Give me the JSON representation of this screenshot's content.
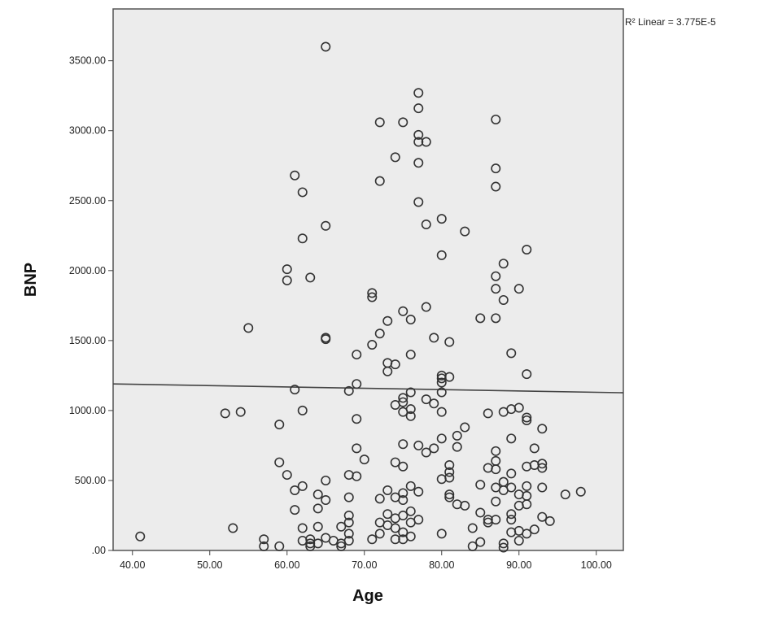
{
  "chart_data": {
    "type": "scatter",
    "xlabel": "Age",
    "ylabel": "BNP",
    "xlim": [
      37.5,
      103.5
    ],
    "ylim": [
      0,
      3870
    ],
    "x_ticks": [
      40,
      50,
      60,
      70,
      80,
      90,
      100
    ],
    "x_tick_labels": [
      "40.00",
      "50.00",
      "60.00",
      "70.00",
      "80.00",
      "90.00",
      "100.00"
    ],
    "y_ticks": [
      0,
      500,
      1000,
      1500,
      2000,
      2500,
      3000,
      3500
    ],
    "y_tick_labels": [
      ".00",
      "500.00",
      "1000.00",
      "1500.00",
      "2000.00",
      "2500.00",
      "3000.00",
      "3500.00"
    ],
    "annotation": "R² Linear = 3.775E-5",
    "grid": false,
    "colors": {
      "plot_background": "#ececec",
      "marker": "#333333",
      "fit_line": "#444444"
    },
    "fit_line": {
      "x": [
        37.5,
        103.5
      ],
      "y": [
        1190,
        1127
      ]
    },
    "points": [
      [
        41,
        100
      ],
      [
        52,
        980
      ],
      [
        53,
        160
      ],
      [
        54,
        990
      ],
      [
        55,
        1590
      ],
      [
        57,
        80
      ],
      [
        57,
        30
      ],
      [
        59,
        30
      ],
      [
        59,
        900
      ],
      [
        59,
        630
      ],
      [
        60,
        540
      ],
      [
        60,
        2010
      ],
      [
        60,
        1930
      ],
      [
        61,
        2680
      ],
      [
        61,
        1150
      ],
      [
        61,
        430
      ],
      [
        61,
        290
      ],
      [
        62,
        2560
      ],
      [
        62,
        2230
      ],
      [
        62,
        1000
      ],
      [
        62,
        460
      ],
      [
        62,
        160
      ],
      [
        62,
        70
      ],
      [
        63,
        1950
      ],
      [
        63,
        50
      ],
      [
        63,
        80
      ],
      [
        63,
        30
      ],
      [
        64,
        400
      ],
      [
        64,
        300
      ],
      [
        64,
        170
      ],
      [
        64,
        50
      ],
      [
        65,
        3600
      ],
      [
        65,
        2320
      ],
      [
        65,
        1520
      ],
      [
        65,
        1510
      ],
      [
        65,
        500
      ],
      [
        65,
        360
      ],
      [
        65,
        90
      ],
      [
        66,
        70
      ],
      [
        67,
        50
      ],
      [
        67,
        170
      ],
      [
        67,
        30
      ],
      [
        68,
        1140
      ],
      [
        68,
        120
      ],
      [
        68,
        70
      ],
      [
        68,
        380
      ],
      [
        68,
        540
      ],
      [
        68,
        200
      ],
      [
        68,
        250
      ],
      [
        69,
        1400
      ],
      [
        69,
        1190
      ],
      [
        69,
        940
      ],
      [
        69,
        730
      ],
      [
        69,
        530
      ],
      [
        70,
        650
      ],
      [
        71,
        1840
      ],
      [
        71,
        1810
      ],
      [
        71,
        1470
      ],
      [
        71,
        80
      ],
      [
        72,
        3060
      ],
      [
        72,
        2640
      ],
      [
        72,
        1550
      ],
      [
        72,
        370
      ],
      [
        72,
        200
      ],
      [
        72,
        120
      ],
      [
        73,
        1640
      ],
      [
        73,
        1340
      ],
      [
        73,
        1280
      ],
      [
        73,
        430
      ],
      [
        73,
        260
      ],
      [
        73,
        180
      ],
      [
        74,
        2810
      ],
      [
        74,
        1330
      ],
      [
        74,
        1040
      ],
      [
        74,
        630
      ],
      [
        74,
        380
      ],
      [
        74,
        230
      ],
      [
        74,
        160
      ],
      [
        74,
        80
      ],
      [
        75,
        3060
      ],
      [
        75,
        1710
      ],
      [
        75,
        1090
      ],
      [
        75,
        1060
      ],
      [
        75,
        990
      ],
      [
        75,
        760
      ],
      [
        75,
        600
      ],
      [
        75,
        410
      ],
      [
        75,
        360
      ],
      [
        75,
        250
      ],
      [
        75,
        130
      ],
      [
        75,
        80
      ],
      [
        76,
        1650
      ],
      [
        76,
        1400
      ],
      [
        76,
        1130
      ],
      [
        76,
        1010
      ],
      [
        76,
        960
      ],
      [
        76,
        460
      ],
      [
        76,
        280
      ],
      [
        76,
        200
      ],
      [
        76,
        100
      ],
      [
        77,
        3270
      ],
      [
        77,
        3160
      ],
      [
        77,
        2970
      ],
      [
        77,
        2920
      ],
      [
        77,
        2770
      ],
      [
        77,
        2490
      ],
      [
        77,
        750
      ],
      [
        77,
        420
      ],
      [
        77,
        220
      ],
      [
        78,
        2920
      ],
      [
        78,
        2330
      ],
      [
        78,
        1740
      ],
      [
        78,
        1080
      ],
      [
        78,
        700
      ],
      [
        79,
        1520
      ],
      [
        79,
        1050
      ],
      [
        79,
        730
      ],
      [
        80,
        2370
      ],
      [
        80,
        2110
      ],
      [
        80,
        1250
      ],
      [
        80,
        1230
      ],
      [
        80,
        1200
      ],
      [
        80,
        1130
      ],
      [
        80,
        990
      ],
      [
        80,
        800
      ],
      [
        80,
        510
      ],
      [
        80,
        120
      ],
      [
        81,
        1490
      ],
      [
        81,
        1240
      ],
      [
        81,
        610
      ],
      [
        81,
        560
      ],
      [
        81,
        520
      ],
      [
        81,
        400
      ],
      [
        81,
        380
      ],
      [
        82,
        820
      ],
      [
        82,
        740
      ],
      [
        82,
        330
      ],
      [
        83,
        2280
      ],
      [
        83,
        880
      ],
      [
        83,
        320
      ],
      [
        84,
        30
      ],
      [
        84,
        160
      ],
      [
        85,
        1660
      ],
      [
        85,
        470
      ],
      [
        85,
        270
      ],
      [
        85,
        60
      ],
      [
        86,
        980
      ],
      [
        86,
        590
      ],
      [
        86,
        220
      ],
      [
        86,
        200
      ],
      [
        87,
        3080
      ],
      [
        87,
        2730
      ],
      [
        87,
        2600
      ],
      [
        87,
        1960
      ],
      [
        87,
        1870
      ],
      [
        87,
        1660
      ],
      [
        87,
        710
      ],
      [
        87,
        640
      ],
      [
        87,
        580
      ],
      [
        87,
        450
      ],
      [
        87,
        350
      ],
      [
        87,
        220
      ],
      [
        88,
        2050
      ],
      [
        88,
        1790
      ],
      [
        88,
        990
      ],
      [
        88,
        490
      ],
      [
        88,
        430
      ],
      [
        88,
        50
      ],
      [
        88,
        20
      ],
      [
        89,
        1410
      ],
      [
        89,
        1010
      ],
      [
        89,
        800
      ],
      [
        89,
        550
      ],
      [
        89,
        450
      ],
      [
        89,
        260
      ],
      [
        89,
        220
      ],
      [
        89,
        130
      ],
      [
        90,
        1870
      ],
      [
        90,
        1020
      ],
      [
        90,
        400
      ],
      [
        90,
        320
      ],
      [
        90,
        140
      ],
      [
        90,
        70
      ],
      [
        91,
        2150
      ],
      [
        91,
        1260
      ],
      [
        91,
        950
      ],
      [
        91,
        930
      ],
      [
        91,
        600
      ],
      [
        91,
        460
      ],
      [
        91,
        390
      ],
      [
        91,
        330
      ],
      [
        91,
        120
      ],
      [
        92,
        730
      ],
      [
        92,
        610
      ],
      [
        92,
        150
      ],
      [
        93,
        870
      ],
      [
        93,
        620
      ],
      [
        93,
        590
      ],
      [
        93,
        450
      ],
      [
        93,
        240
      ],
      [
        94,
        210
      ],
      [
        96,
        400
      ],
      [
        98,
        420
      ]
    ]
  }
}
